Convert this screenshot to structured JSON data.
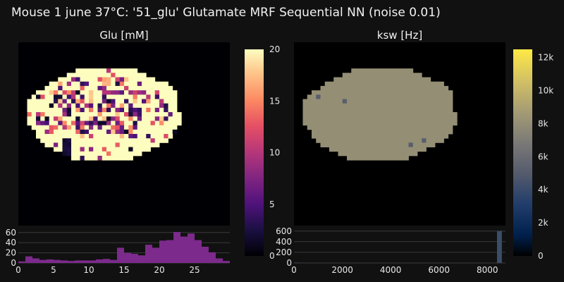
{
  "title": "Mouse 1 june 37°C: '51_glu' Glutamate MRF Sequential NN (noise 0.01)",
  "chart_data": [
    {
      "type": "heatmap",
      "title": "Glu [mM]",
      "colorscale": "magma",
      "colorbar": {
        "range": [
          0,
          20
        ],
        "ticks": [
          0,
          5,
          10,
          15,
          20
        ],
        "tick_labels": [
          "0",
          "5",
          "10",
          "15",
          "20"
        ]
      },
      "background_value": 0,
      "region_typical_value": 20,
      "histogram": {
        "type": "bar",
        "color": "#7c2a8c",
        "x_range": [
          0,
          30
        ],
        "x_ticks": [
          0,
          5,
          10,
          15,
          20,
          25
        ],
        "x_tick_labels": [
          "0",
          "5",
          "10",
          "15",
          "20",
          "25"
        ],
        "y_range": [
          0,
          68
        ],
        "y_ticks": [
          0,
          20,
          40,
          60
        ],
        "y_tick_labels": [
          "0",
          "20",
          "40",
          "60"
        ],
        "bin_width": 1,
        "bin_starts": [
          0,
          1,
          2,
          3,
          4,
          5,
          6,
          7,
          8,
          9,
          10,
          11,
          12,
          13,
          14,
          15,
          16,
          17,
          18,
          19,
          20,
          21,
          22,
          23,
          24,
          25,
          26,
          27,
          28,
          29
        ],
        "counts": [
          3,
          13,
          9,
          6,
          7,
          6,
          5,
          4,
          5,
          5,
          5,
          7,
          8,
          6,
          30,
          20,
          18,
          15,
          36,
          30,
          44,
          45,
          61,
          52,
          58,
          45,
          32,
          21,
          9,
          4
        ]
      }
    },
    {
      "type": "heatmap",
      "title": "ksw [Hz]",
      "colorscale": "cividis",
      "colorbar": {
        "range": [
          0,
          12500
        ],
        "ticks": [
          0,
          2000,
          4000,
          6000,
          8000,
          10000,
          12000
        ],
        "tick_labels": [
          "0",
          "2k",
          "4k",
          "6k",
          "8k",
          "10k",
          "12k"
        ]
      },
      "background_value": 0,
      "region_typical_value": 8000,
      "histogram": {
        "type": "bar",
        "color": "#3c4c6b",
        "x_range": [
          0,
          8750
        ],
        "x_ticks": [
          0,
          2000,
          4000,
          6000,
          8000
        ],
        "x_tick_labels": [
          "0",
          "2000",
          "4000",
          "6000",
          "8000"
        ],
        "y_range": [
          0,
          650
        ],
        "y_ticks": [
          0,
          200,
          400,
          600
        ],
        "y_tick_labels": [
          "0",
          "200",
          "400",
          "600"
        ],
        "bin_width": 200,
        "bin_starts": [
          0,
          8400
        ],
        "counts": [
          8,
          600
        ]
      }
    }
  ]
}
